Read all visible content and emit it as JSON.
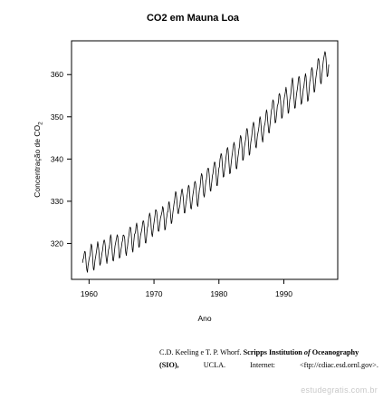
{
  "chart_data": {
    "type": "line",
    "title": "CO2 em Mauna Loa",
    "xlabel": "Ano",
    "ylabel_prefix": "Concentração de CO",
    "ylabel_subscript": "2",
    "xlim": [
      1957.3,
      1998.3
    ],
    "ylim": [
      311.5,
      368
    ],
    "xticks": [
      1960,
      1970,
      1980,
      1990
    ],
    "yticks": [
      320,
      330,
      340,
      350,
      360
    ],
    "x_start": 1959.0,
    "step": 0.0833333,
    "series": [
      {
        "values": [
          315.42,
          316.31,
          316.5,
          317.56,
          318.13,
          318.0,
          316.39,
          314.65,
          313.68,
          313.18,
          314.66,
          315.43,
          316.27,
          316.81,
          317.42,
          318.87,
          319.87,
          319.43,
          318.01,
          315.74,
          314.0,
          313.68,
          314.84,
          316.03,
          316.73,
          317.54,
          318.38,
          319.31,
          320.42,
          319.61,
          318.42,
          316.63,
          314.83,
          315.16,
          315.94,
          316.85,
          317.78,
          318.4,
          319.53,
          320.42,
          320.85,
          320.45,
          319.45,
          317.25,
          316.11,
          315.27,
          316.53,
          317.53,
          318.58,
          318.92,
          319.7,
          321.22,
          322.08,
          321.31,
          319.58,
          317.61,
          316.05,
          315.83,
          316.91,
          318.2,
          319.41,
          320.07,
          320.74,
          321.4,
          322.06,
          321.73,
          320.27,
          318.54,
          316.54,
          316.71,
          317.53,
          318.55,
          319.27,
          320.28,
          320.73,
          321.97,
          322.0,
          321.71,
          321.05,
          318.71,
          317.66,
          317.14,
          318.7,
          319.25,
          320.46,
          321.43,
          322.23,
          323.54,
          323.91,
          323.59,
          322.24,
          320.2,
          318.48,
          317.94,
          319.63,
          320.87,
          322.17,
          322.34,
          322.88,
          324.25,
          324.83,
          323.93,
          322.38,
          320.76,
          319.1,
          319.24,
          320.56,
          321.8,
          322.4,
          322.99,
          323.73,
          324.86,
          325.4,
          325.2,
          323.98,
          321.95,
          320.18,
          320.09,
          321.16,
          322.74,
          323.83,
          324.26,
          325.47,
          326.5,
          327.21,
          326.54,
          325.72,
          323.5,
          322.22,
          321.62,
          322.69,
          323.95,
          324.89,
          325.82,
          326.77,
          327.97,
          327.91,
          327.5,
          326.18,
          324.53,
          322.93,
          322.9,
          323.85,
          324.96,
          326.01,
          326.51,
          327.01,
          327.62,
          328.76,
          328.4,
          327.2,
          325.27,
          323.2,
          323.4,
          324.63,
          325.85,
          326.6,
          327.47,
          327.58,
          329.56,
          329.9,
          328.92,
          327.88,
          326.16,
          324.68,
          325.04,
          326.34,
          327.39,
          328.37,
          329.4,
          330.14,
          331.33,
          332.31,
          331.9,
          330.7,
          329.15,
          327.35,
          327.02,
          327.99,
          328.48,
          329.18,
          330.55,
          331.32,
          332.48,
          332.92,
          332.08,
          331.01,
          329.23,
          327.27,
          327.21,
          328.29,
          329.41,
          330.23,
          331.25,
          331.87,
          333.14,
          333.8,
          333.43,
          331.73,
          329.9,
          328.4,
          328.17,
          329.32,
          330.59,
          331.58,
          332.39,
          333.33,
          334.41,
          334.71,
          334.17,
          332.89,
          330.77,
          329.14,
          328.78,
          330.14,
          331.52,
          332.75,
          333.24,
          334.53,
          335.9,
          336.57,
          336.1,
          334.76,
          332.59,
          331.42,
          330.98,
          332.24,
          333.68,
          334.8,
          335.22,
          336.47,
          337.59,
          337.84,
          337.72,
          336.37,
          334.51,
          332.6,
          332.38,
          333.75,
          334.78,
          336.05,
          336.59,
          337.79,
          338.71,
          339.3,
          339.12,
          337.56,
          335.92,
          333.75,
          333.7,
          335.12,
          336.56,
          337.84,
          338.19,
          339.91,
          340.6,
          341.29,
          341.0,
          339.39,
          337.43,
          335.72,
          335.84,
          336.93,
          338.04,
          339.06,
          340.3,
          341.21,
          342.33,
          342.74,
          342.08,
          340.32,
          338.26,
          336.52,
          336.68,
          338.19,
          339.44,
          340.57,
          341.44,
          342.53,
          343.39,
          343.96,
          343.18,
          341.88,
          339.65,
          337.81,
          337.69,
          339.09,
          340.32,
          341.2,
          342.35,
          342.93,
          344.77,
          345.58,
          345.14,
          343.81,
          342.21,
          339.69,
          339.82,
          340.98,
          342.82,
          343.52,
          344.33,
          345.11,
          346.88,
          347.25,
          346.62,
          345.22,
          343.11,
          340.9,
          341.18,
          342.8,
          344.04,
          344.79,
          345.82,
          347.25,
          348.17,
          348.74,
          348.07,
          346.38,
          344.51,
          342.92,
          342.62,
          344.06,
          345.38,
          346.11,
          346.78,
          347.68,
          349.37,
          350.03,
          349.37,
          347.76,
          345.73,
          344.68,
          343.99,
          345.48,
          346.72,
          347.84,
          348.29,
          349.23,
          350.8,
          351.66,
          351.07,
          349.33,
          347.92,
          346.27,
          346.18,
          347.64,
          348.78,
          350.25,
          351.54,
          352.05,
          353.41,
          354.04,
          353.62,
          352.22,
          350.27,
          348.55,
          348.72,
          349.91,
          351.18,
          352.6,
          352.92,
          353.53,
          355.26,
          355.52,
          354.97,
          353.75,
          351.52,
          349.64,
          349.83,
          351.14,
          352.37,
          353.5,
          354.55,
          355.23,
          356.04,
          357.0,
          356.07,
          354.67,
          352.76,
          350.82,
          351.04,
          352.69,
          354.07,
          354.59,
          355.63,
          357.03,
          358.48,
          359.22,
          358.12,
          356.06,
          353.92,
          352.05,
          352.11,
          353.64,
          354.89,
          355.88,
          356.63,
          357.72,
          359.07,
          359.58,
          359.17,
          356.94,
          354.92,
          352.94,
          353.23,
          354.09,
          355.33,
          356.63,
          357.1,
          358.32,
          359.41,
          360.23,
          359.55,
          357.53,
          355.48,
          353.67,
          353.95,
          355.3,
          356.78,
          358.34,
          358.89,
          359.95,
          361.25,
          361.67,
          360.94,
          359.55,
          357.49,
          355.84,
          356.0,
          357.59,
          359.05,
          359.98,
          361.03,
          361.66,
          363.48,
          363.82,
          363.3,
          361.94,
          359.5,
          358.11,
          357.8,
          359.61,
          360.74,
          362.09,
          363.29,
          364.06,
          364.76,
          365.45,
          365.01,
          363.7,
          361.54,
          359.51,
          359.65,
          360.8,
          362.38
        ]
      }
    ],
    "grid": false,
    "legend": "none"
  },
  "credit": {
    "authors": "C.D. Keeling e T. P. Whorf.",
    "inst_a": "Scripps Institution ",
    "inst_of": "of",
    "inst_b": " Oceanography",
    "abbr": "(SIO),",
    "ucla": "UCLA.",
    "internet": "Internet:",
    "ftp": "<ftp://cdiac.esd.ornl.gov>."
  },
  "watermark": "estudegratis.com.br"
}
